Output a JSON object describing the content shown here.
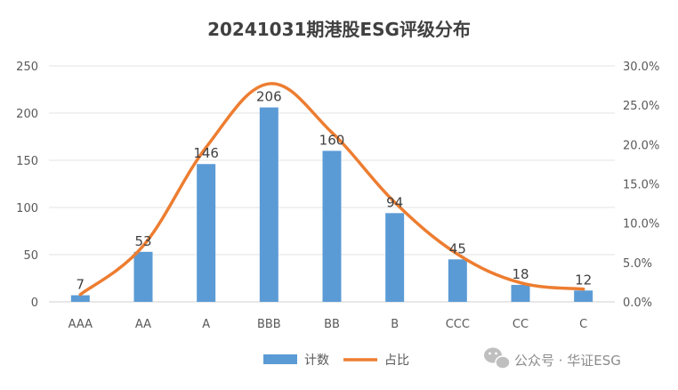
{
  "chart_data": {
    "type": "bar",
    "title": "20241031期港股ESG评级分布",
    "categories": [
      "AAA",
      "AA",
      "A",
      "BBB",
      "BB",
      "B",
      "CCC",
      "CC",
      "C"
    ],
    "series": [
      {
        "name": "计数",
        "type": "bar",
        "axis": "left",
        "color": "#5B9BD5",
        "values": [
          7,
          53,
          146,
          206,
          160,
          94,
          45,
          18,
          12
        ],
        "data_labels": [
          "7",
          "53",
          "146",
          "206",
          "160",
          "94",
          "45",
          "18",
          "12"
        ]
      },
      {
        "name": "占比",
        "type": "line",
        "axis": "right",
        "color": "#ED7D31",
        "values": [
          0.94,
          7.13,
          19.65,
          27.73,
          21.53,
          12.65,
          6.06,
          2.42,
          1.62
        ]
      }
    ],
    "y_left": {
      "min": 0,
      "max": 250,
      "ticks": [
        "0",
        "50",
        "100",
        "150",
        "200",
        "250"
      ]
    },
    "y_right": {
      "min": 0,
      "max": 30,
      "ticks": [
        "0.0%",
        "5.0%",
        "10.0%",
        "15.0%",
        "20.0%",
        "25.0%",
        "30.0%"
      ]
    },
    "grid": true,
    "legend_position": "bottom"
  },
  "watermark": {
    "text": "公众号 · 华证ESG",
    "icon": "wechat-icon"
  }
}
